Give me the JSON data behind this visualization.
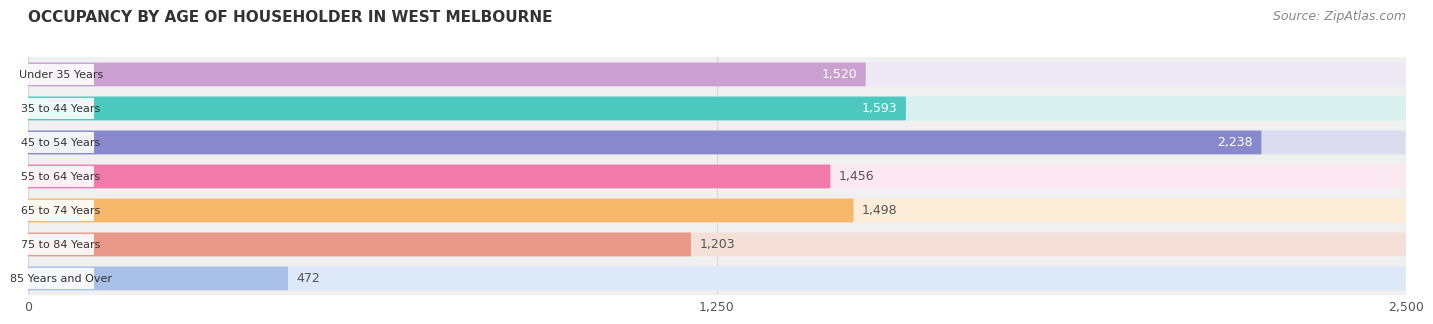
{
  "title": "OCCUPANCY BY AGE OF HOUSEHOLDER IN WEST MELBOURNE",
  "source": "Source: ZipAtlas.com",
  "categories": [
    "Under 35 Years",
    "35 to 44 Years",
    "45 to 54 Years",
    "55 to 64 Years",
    "65 to 74 Years",
    "75 to 84 Years",
    "85 Years and Over"
  ],
  "values": [
    1520,
    1593,
    2238,
    1456,
    1498,
    1203,
    472
  ],
  "bar_colors": [
    "#c9a0d0",
    "#4dc8be",
    "#8888cc",
    "#f07aaa",
    "#f5b86a",
    "#e89888",
    "#a8c0e8"
  ],
  "bar_bg_colors": [
    "#ede8f4",
    "#d8f0ee",
    "#dcdcf0",
    "#fce8f0",
    "#fdecd8",
    "#f5e0d8",
    "#dde8f8"
  ],
  "xlim": [
    0,
    2500
  ],
  "xticks": [
    0,
    1250,
    2500
  ],
  "xtick_labels": [
    "0",
    "1,250",
    "2,500"
  ],
  "title_fontsize": 11,
  "source_fontsize": 9,
  "bar_label_fontsize": 9,
  "category_fontsize": 8,
  "background_color": "#ffffff",
  "bar_area_bg": "#f0f0f0",
  "grid_color": "#d8d8d8"
}
